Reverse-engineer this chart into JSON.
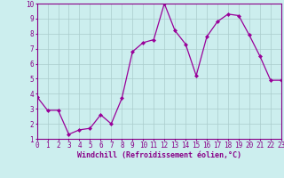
{
  "x": [
    0,
    1,
    2,
    3,
    4,
    5,
    6,
    7,
    8,
    9,
    10,
    11,
    12,
    13,
    14,
    15,
    16,
    17,
    18,
    19,
    20,
    21,
    22,
    23
  ],
  "y": [
    3.8,
    2.9,
    2.9,
    1.3,
    1.6,
    1.7,
    2.6,
    2.0,
    3.7,
    6.8,
    7.4,
    7.6,
    10.0,
    8.2,
    7.3,
    5.2,
    7.8,
    8.8,
    9.3,
    9.2,
    7.9,
    6.5,
    4.9,
    4.9
  ],
  "line_color": "#990099",
  "marker": "D",
  "marker_size": 2.0,
  "bg_color": "#cceeee",
  "grid_color": "#aacccc",
  "axis_color": "#880088",
  "xlabel": "Windchill (Refroidissement éolien,°C)",
  "xlim": [
    0,
    23
  ],
  "ylim": [
    1,
    10
  ],
  "yticks": [
    1,
    2,
    3,
    4,
    5,
    6,
    7,
    8,
    9,
    10
  ],
  "xticks": [
    0,
    1,
    2,
    3,
    4,
    5,
    6,
    7,
    8,
    9,
    10,
    11,
    12,
    13,
    14,
    15,
    16,
    17,
    18,
    19,
    20,
    21,
    22,
    23
  ],
  "tick_fontsize": 5.5,
  "label_fontsize": 6.0
}
